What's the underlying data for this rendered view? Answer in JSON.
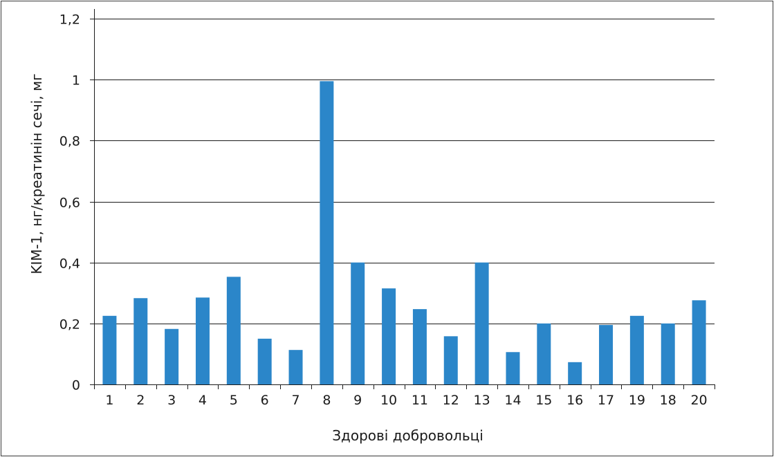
{
  "chart_data": {
    "type": "bar",
    "title": "",
    "xlabel": "Здорові добровольці",
    "ylabel": "KIM-1, нг/креатинін сечі, мг",
    "categories": [
      "1",
      "2",
      "3",
      "4",
      "5",
      "6",
      "7",
      "8",
      "9",
      "10",
      "11",
      "12",
      "13",
      "14",
      "15",
      "16",
      "17",
      "19",
      "18",
      "20"
    ],
    "values": [
      0.225,
      0.283,
      0.182,
      0.285,
      0.353,
      0.15,
      0.113,
      0.995,
      0.4,
      0.315,
      0.247,
      0.158,
      0.4,
      0.106,
      0.2,
      0.073,
      0.195,
      0.225,
      0.2,
      0.276
    ],
    "ylim": [
      0,
      1.2
    ],
    "yticks": [
      {
        "value": 0,
        "label": "0"
      },
      {
        "value": 0.2,
        "label": "0,2"
      },
      {
        "value": 0.4,
        "label": "0,4"
      },
      {
        "value": 0.6,
        "label": "0,6"
      },
      {
        "value": 0.8,
        "label": "0,8"
      },
      {
        "value": 1.0,
        "label": "1"
      },
      {
        "value": 1.2,
        "label": "1,2"
      }
    ],
    "grid": true,
    "legend": "none",
    "bar_color": "#2b86c9",
    "grid_color": "#1a1a1a"
  }
}
